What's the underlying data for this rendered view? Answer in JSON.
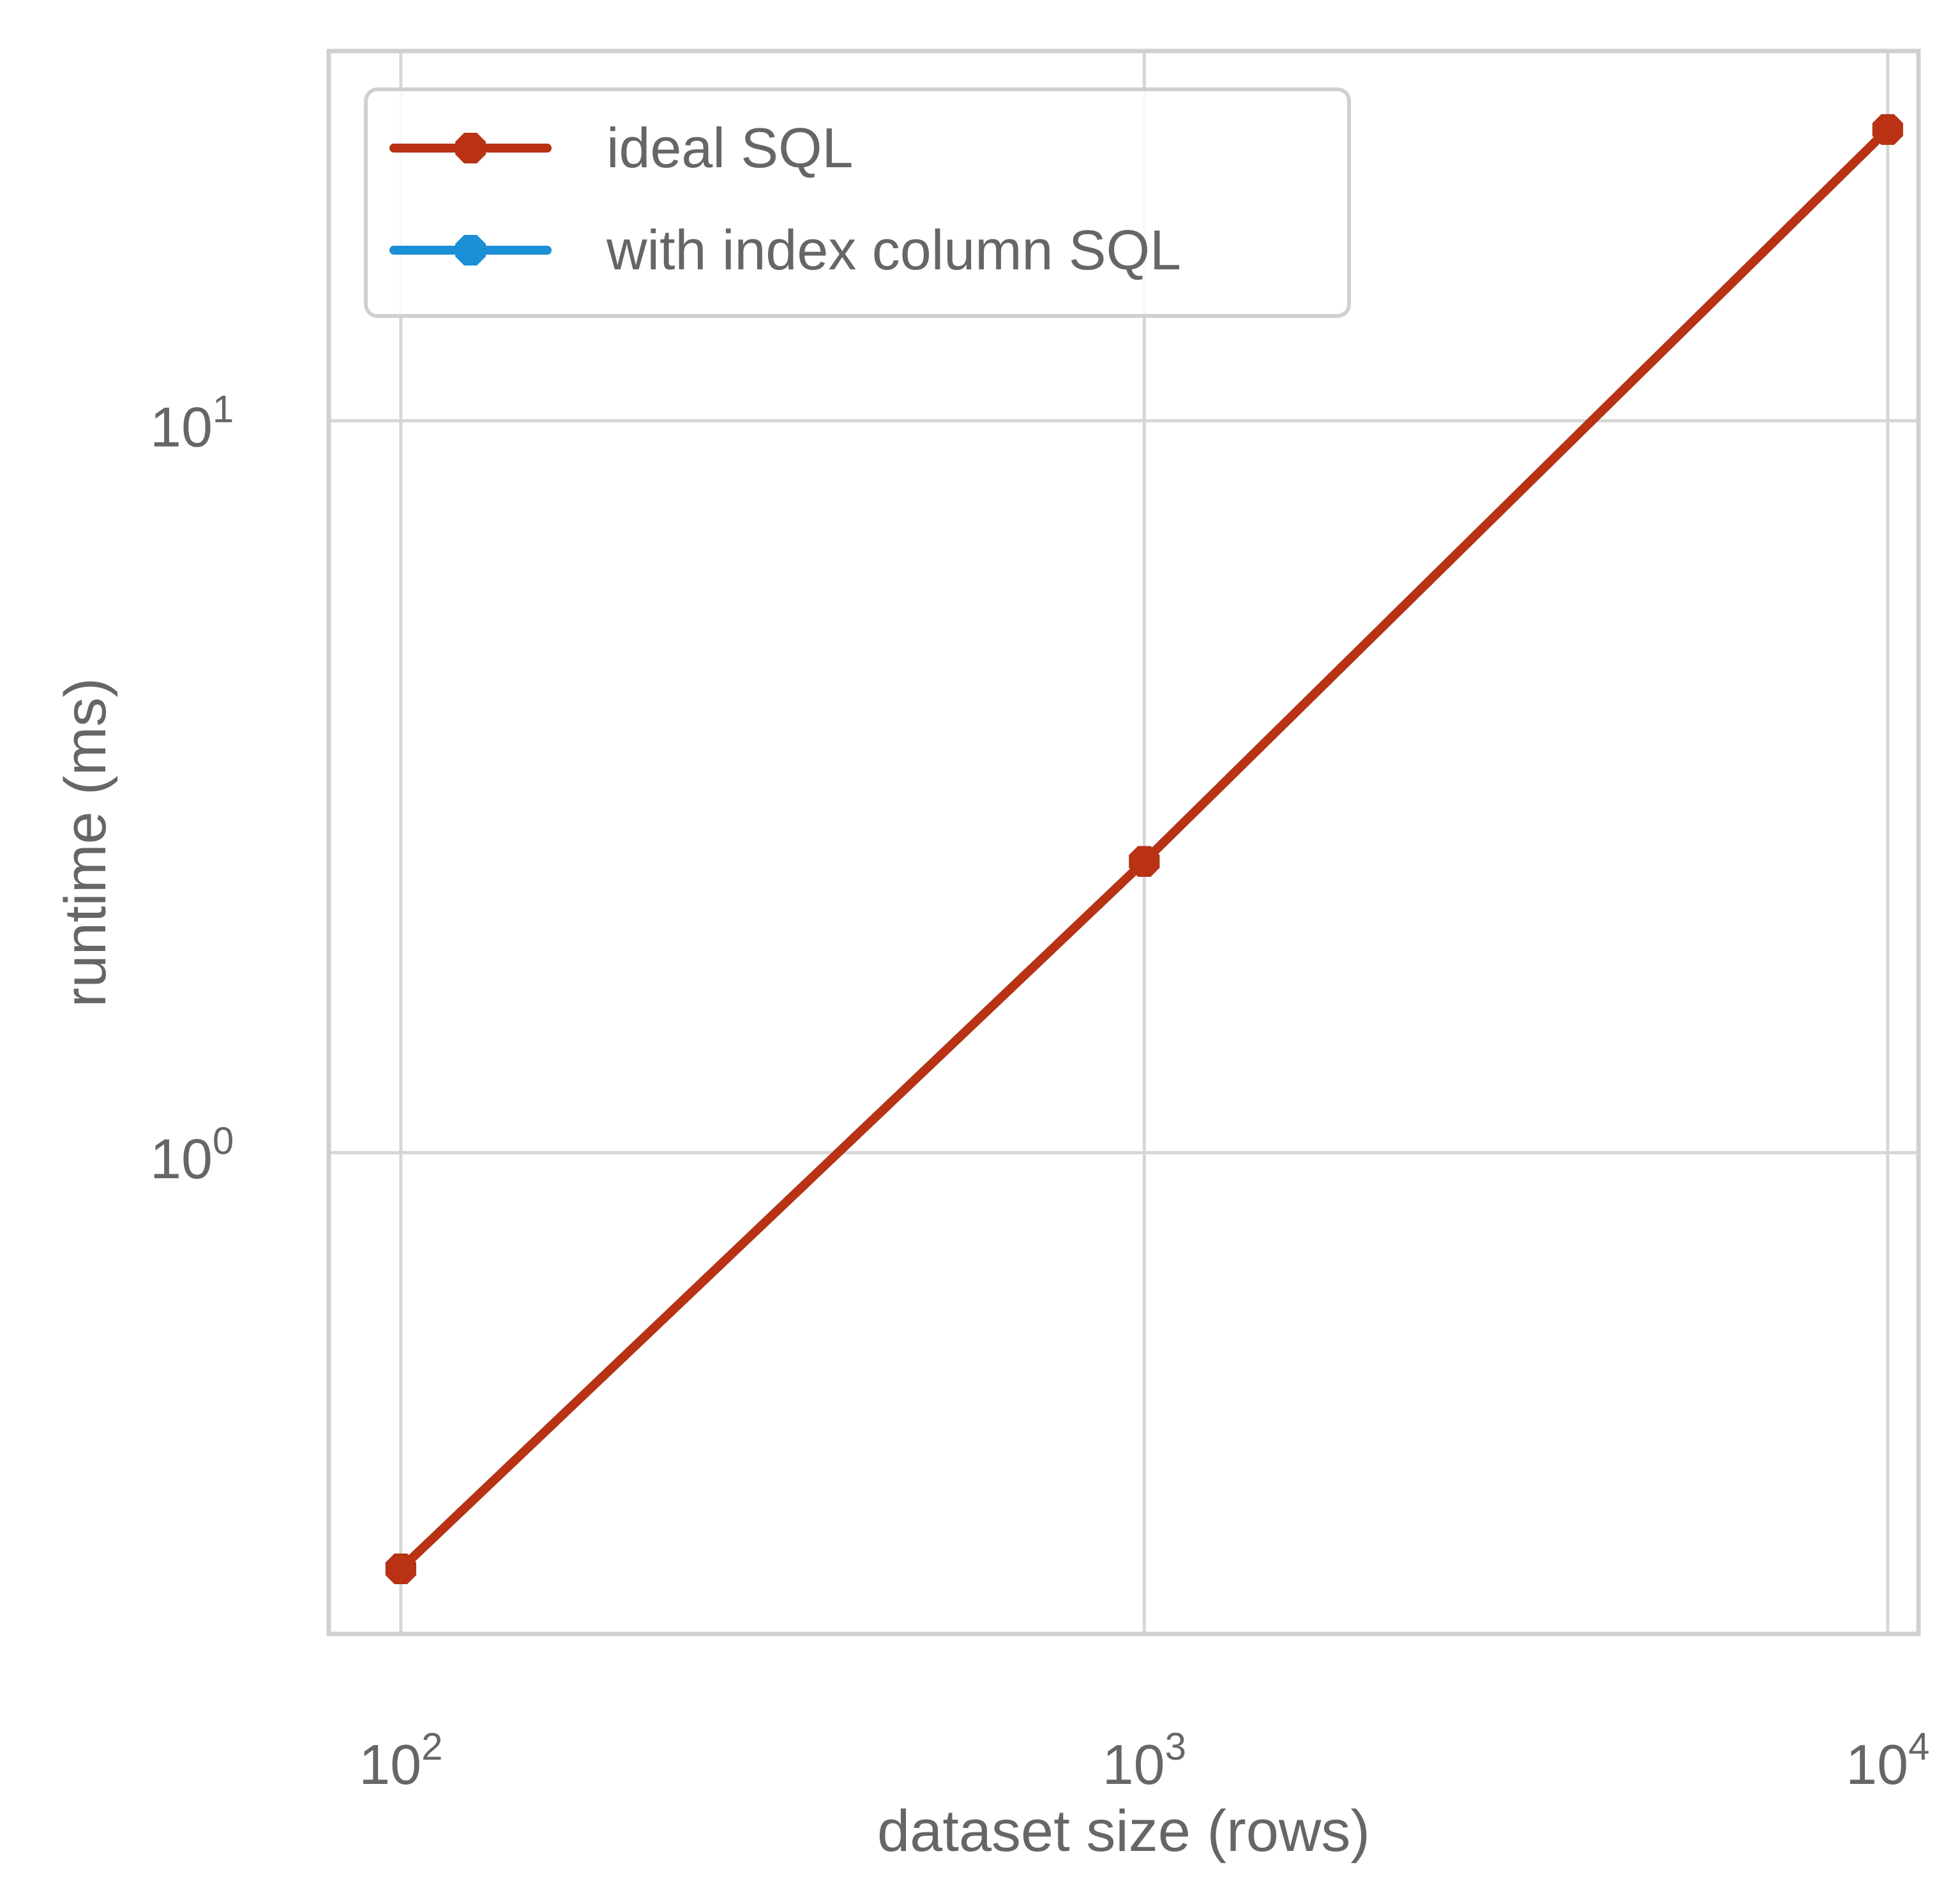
{
  "chart_data": {
    "type": "line",
    "title": "",
    "xlabel": "dataset size (rows)",
    "ylabel": "runtime (ms)",
    "xscale": "log",
    "yscale": "log",
    "xlim": [
      80,
      11000
    ],
    "ylim": [
      0.22,
      32
    ],
    "grid": true,
    "legend_position": "top-left",
    "x_ticks": [
      {
        "value": 100,
        "base": "10",
        "exp": "2"
      },
      {
        "value": 1000,
        "base": "10",
        "exp": "3"
      },
      {
        "value": 10000,
        "base": "10",
        "exp": "4"
      }
    ],
    "y_ticks": [
      {
        "value": 1,
        "base": "10",
        "exp": "0"
      },
      {
        "value": 10,
        "base": "10",
        "exp": "1"
      }
    ],
    "series": [
      {
        "name": "ideal SQL",
        "color": "#b83213",
        "marker": "octagon",
        "x": [
          100,
          1000,
          10000
        ],
        "y": [
          0.27,
          2.5,
          25
        ]
      },
      {
        "name": "with index column SQL",
        "color": "#1a8fd6",
        "marker": "octagon",
        "x": [
          100,
          1000,
          10000
        ],
        "y": [
          0.27,
          2.5,
          25
        ]
      }
    ]
  }
}
